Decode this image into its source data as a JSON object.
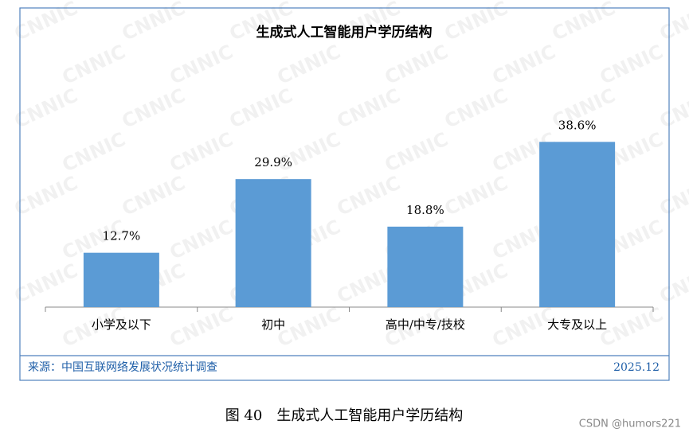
{
  "chart_data": {
    "type": "bar",
    "title": "生成式人工智能用户学历结构",
    "categories": [
      "小学及以下",
      "初中",
      "高中/中专/技校",
      "大专及以上"
    ],
    "values": [
      12.7,
      29.9,
      18.8,
      38.6
    ],
    "value_labels": [
      "12.7%",
      "29.9%",
      "18.8%",
      "38.6%"
    ],
    "color": "#5b9bd5"
  },
  "source": "来源：中国互联网络发展状况统计调查",
  "date": "2025.12",
  "caption": "图 40　生成式人工智能用户学历结构",
  "watermark": "CNNIC",
  "credit": "CSDN @humors221"
}
